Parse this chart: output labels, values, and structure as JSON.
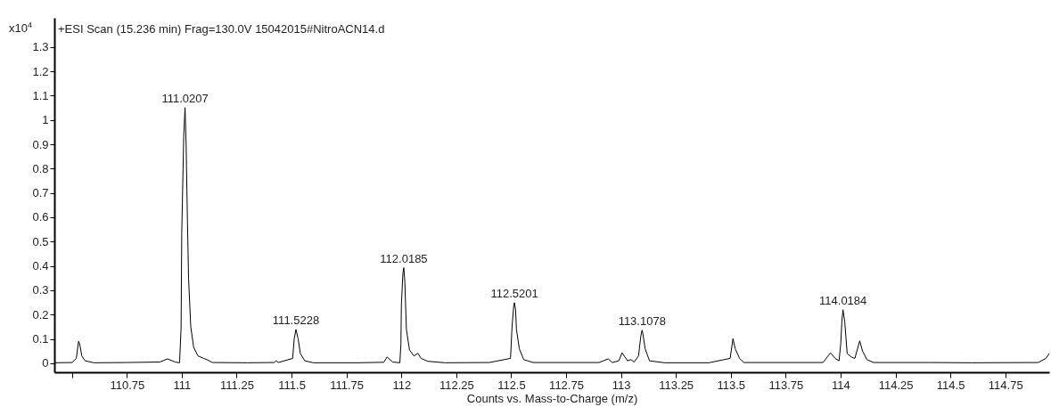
{
  "chart_data": {
    "type": "line",
    "title": "+ESI Scan (15.236 min) Frag=130.0V 15042015#NitroACN14.d",
    "xlabel": "Counts vs. Mass-to-Charge (m/z)",
    "ylabel": "x10$^{4}$",
    "x": [
      110.42,
      110.5,
      110.52,
      110.53,
      110.535,
      110.545,
      110.56,
      110.6,
      110.75,
      110.9,
      110.935,
      110.97,
      110.99,
      110.997,
      111.0,
      111.009,
      111.015,
      111.02,
      111.026,
      111.031,
      111.041,
      111.054,
      111.074,
      111.1,
      111.114,
      111.14,
      111.3,
      111.42,
      111.43,
      111.44,
      111.505,
      111.512,
      111.52,
      111.53,
      111.54,
      111.56,
      111.6,
      111.8,
      111.92,
      111.935,
      111.96,
      111.993,
      111.998,
      112.0,
      112.007,
      112.011,
      112.016,
      112.023,
      112.037,
      112.057,
      112.075,
      112.09,
      112.12,
      112.2,
      112.4,
      112.497,
      112.504,
      112.512,
      112.515,
      112.52,
      112.524,
      112.537,
      112.557,
      112.6,
      112.9,
      112.942,
      112.96,
      112.99,
      113.005,
      113.03,
      113.045,
      113.06,
      113.08,
      113.09,
      113.096,
      113.1,
      113.11,
      113.13,
      113.2,
      113.4,
      113.497,
      113.51,
      113.52,
      113.54,
      113.56,
      113.7,
      113.92,
      113.954,
      113.975,
      113.993,
      114.001,
      114.006,
      114.011,
      114.019,
      114.03,
      114.05,
      114.065,
      114.087,
      114.1,
      114.12,
      114.15,
      114.4,
      114.6,
      114.9,
      114.935,
      114.95
    ],
    "series": [
      {
        "color": "#000000",
        "values": [
          0.002,
          0.003,
          0.02,
          0.09,
          0.08,
          0.03,
          0.01,
          0.002,
          0.003,
          0.005,
          0.018,
          0.005,
          0.002,
          0.146,
          0.536,
          0.934,
          1.051,
          0.897,
          0.58,
          0.35,
          0.151,
          0.066,
          0.03,
          0.02,
          0.015,
          0.003,
          0.002,
          0.003,
          0.01,
          0.003,
          0.02,
          0.1,
          0.139,
          0.1,
          0.04,
          0.01,
          0.002,
          0.002,
          0.004,
          0.026,
          0.005,
          0.002,
          0.078,
          0.238,
          0.371,
          0.393,
          0.33,
          0.139,
          0.055,
          0.03,
          0.041,
          0.02,
          0.008,
          0.002,
          0.003,
          0.02,
          0.15,
          0.24,
          0.249,
          0.22,
          0.14,
          0.06,
          0.015,
          0.003,
          0.003,
          0.018,
          0.003,
          0.01,
          0.043,
          0.01,
          0.015,
          0.005,
          0.03,
          0.11,
          0.136,
          0.12,
          0.06,
          0.01,
          0.002,
          0.002,
          0.02,
          0.101,
          0.06,
          0.02,
          0.003,
          0.003,
          0.003,
          0.043,
          0.02,
          0.01,
          0.083,
          0.175,
          0.22,
          0.17,
          0.04,
          0.025,
          0.02,
          0.092,
          0.05,
          0.015,
          0.003,
          0.003,
          0.002,
          0.003,
          0.02,
          0.04
        ]
      }
    ],
    "xlim": [
      110.42,
      114.95
    ],
    "ylim": [
      -0.037,
      1.42
    ],
    "xticks": [
      {
        "value": 110.5,
        "label": null
      },
      110.75,
      111,
      111.25,
      111.5,
      111.75,
      112,
      112.25,
      112.5,
      112.75,
      113,
      113.25,
      113.5,
      113.75,
      114,
      114.25,
      114.5,
      114.75
    ],
    "yticks": [
      0,
      0.1,
      0.2,
      0.3,
      0.4,
      0.5,
      0.6,
      0.7,
      0.8,
      0.9,
      1,
      1.1,
      1.2,
      1.3
    ],
    "annotations": [
      {
        "text": "111.0207",
        "x": 111.015,
        "y": 1.051
      },
      {
        "text": "111.5228",
        "x": 111.52,
        "y": 0.139
      },
      {
        "text": "112.0185",
        "x": 112.011,
        "y": 0.393
      },
      {
        "text": "112.5201",
        "x": 112.515,
        "y": 0.249
      },
      {
        "text": "113.1078",
        "x": 113.096,
        "y": 0.136
      },
      {
        "text": "114.0184",
        "x": 114.011,
        "y": 0.22
      }
    ]
  }
}
